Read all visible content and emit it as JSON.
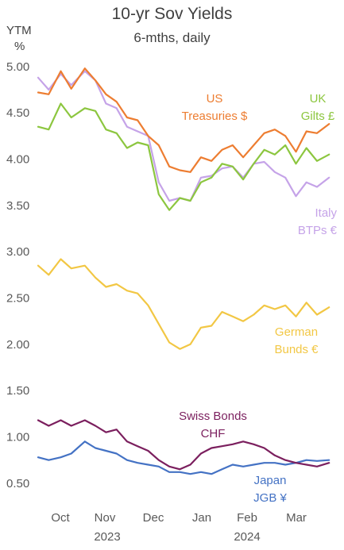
{
  "title": "10-yr Sov Yields",
  "subtitle": "6-mths, daily",
  "ylabel_line1": "YTM",
  "ylabel_line2": "%",
  "chart_data": {
    "type": "line",
    "title": "10-yr Sov Yields",
    "subtitle": "6-mths, daily",
    "ylabel": "YTM %",
    "ylim": [
      0.25,
      5.05
    ],
    "yticks": [
      "5.00",
      "4.50",
      "4.00",
      "3.50",
      "3.00",
      "2.50",
      "2.00",
      "1.50",
      "1.00",
      "0.50"
    ],
    "xlim": [
      "2023-09-18",
      "2024-03-31"
    ],
    "xticks": [
      {
        "month": "Oct",
        "year": "2023"
      },
      {
        "month": "Nov",
        "year": ""
      },
      {
        "month": "Dec",
        "year": ""
      },
      {
        "month": "Jan",
        "year": ""
      },
      {
        "month": "Feb",
        "year": "2024"
      },
      {
        "month": "Mar",
        "year": ""
      }
    ],
    "grid": false,
    "legend": "inline labels",
    "series": [
      {
        "name": "US Treasuries $",
        "label_lines": [
          "US",
          "Treasuries $"
        ],
        "color": "#ED7D31",
        "x": [
          "2023-09-18",
          "2023-09-25",
          "2023-10-03",
          "2023-10-10",
          "2023-10-19",
          "2023-10-26",
          "2023-11-02",
          "2023-11-09",
          "2023-11-16",
          "2023-11-23",
          "2023-11-30",
          "2023-12-07",
          "2023-12-14",
          "2023-12-21",
          "2023-12-28",
          "2024-01-04",
          "2024-01-11",
          "2024-01-18",
          "2024-01-25",
          "2024-02-01",
          "2024-02-08",
          "2024-02-15",
          "2024-02-22",
          "2024-02-29",
          "2024-03-07",
          "2024-03-14",
          "2024-03-21",
          "2024-03-29"
        ],
        "y": [
          4.72,
          4.7,
          4.95,
          4.76,
          4.98,
          4.85,
          4.7,
          4.62,
          4.45,
          4.42,
          4.25,
          4.15,
          3.92,
          3.88,
          3.86,
          4.02,
          3.98,
          4.1,
          4.15,
          4.02,
          4.15,
          4.28,
          4.32,
          4.25,
          4.08,
          4.3,
          4.28,
          4.38
        ]
      },
      {
        "name": "UK Gilts £",
        "label_lines": [
          "UK",
          "Gilts £"
        ],
        "color": "#8CC63F",
        "x": [
          "2023-09-18",
          "2023-09-25",
          "2023-10-03",
          "2023-10-10",
          "2023-10-19",
          "2023-10-26",
          "2023-11-02",
          "2023-11-09",
          "2023-11-16",
          "2023-11-23",
          "2023-11-30",
          "2023-12-07",
          "2023-12-14",
          "2023-12-21",
          "2023-12-28",
          "2024-01-04",
          "2024-01-11",
          "2024-01-18",
          "2024-01-25",
          "2024-02-01",
          "2024-02-08",
          "2024-02-15",
          "2024-02-22",
          "2024-02-29",
          "2024-03-07",
          "2024-03-14",
          "2024-03-21",
          "2024-03-29"
        ],
        "y": [
          4.35,
          4.32,
          4.6,
          4.45,
          4.55,
          4.52,
          4.32,
          4.28,
          4.12,
          4.18,
          4.15,
          3.62,
          3.45,
          3.58,
          3.55,
          3.75,
          3.8,
          3.95,
          3.92,
          3.78,
          3.95,
          4.1,
          4.05,
          4.15,
          3.95,
          4.12,
          3.98,
          4.05
        ]
      },
      {
        "name": "Italy BTPs €",
        "label_lines": [
          "Italy",
          "BTPs €"
        ],
        "color": "#C5A3E8",
        "x": [
          "2023-09-18",
          "2023-09-25",
          "2023-10-03",
          "2023-10-10",
          "2023-10-19",
          "2023-10-26",
          "2023-11-02",
          "2023-11-09",
          "2023-11-16",
          "2023-11-23",
          "2023-11-30",
          "2023-12-07",
          "2023-12-14",
          "2023-12-21",
          "2023-12-28",
          "2024-01-04",
          "2024-01-11",
          "2024-01-18",
          "2024-01-25",
          "2024-02-01",
          "2024-02-08",
          "2024-02-15",
          "2024-02-22",
          "2024-02-29",
          "2024-03-07",
          "2024-03-14",
          "2024-03-21",
          "2024-03-29"
        ],
        "y": [
          4.88,
          4.75,
          4.92,
          4.8,
          4.95,
          4.85,
          4.6,
          4.55,
          4.35,
          4.3,
          4.25,
          3.75,
          3.55,
          3.58,
          3.55,
          3.8,
          3.82,
          3.9,
          3.92,
          3.8,
          3.95,
          3.97,
          3.86,
          3.8,
          3.6,
          3.75,
          3.7,
          3.8
        ]
      },
      {
        "name": "German Bunds €",
        "label_lines": [
          "German",
          "Bunds €"
        ],
        "color": "#F2C744",
        "x": [
          "2023-09-18",
          "2023-09-25",
          "2023-10-03",
          "2023-10-10",
          "2023-10-19",
          "2023-10-26",
          "2023-11-02",
          "2023-11-09",
          "2023-11-16",
          "2023-11-23",
          "2023-11-30",
          "2023-12-07",
          "2023-12-14",
          "2023-12-21",
          "2023-12-28",
          "2024-01-04",
          "2024-01-11",
          "2024-01-18",
          "2024-01-25",
          "2024-02-01",
          "2024-02-08",
          "2024-02-15",
          "2024-02-22",
          "2024-02-29",
          "2024-03-07",
          "2024-03-14",
          "2024-03-21",
          "2024-03-29"
        ],
        "y": [
          2.85,
          2.75,
          2.92,
          2.82,
          2.85,
          2.72,
          2.62,
          2.65,
          2.58,
          2.55,
          2.42,
          2.22,
          2.02,
          1.95,
          2.0,
          2.18,
          2.2,
          2.35,
          2.3,
          2.25,
          2.32,
          2.42,
          2.38,
          2.42,
          2.3,
          2.45,
          2.32,
          2.4
        ]
      },
      {
        "name": "Swiss Bonds CHF",
        "label_lines": [
          "Swiss Bonds",
          "CHF"
        ],
        "color": "#7B1F5E",
        "x": [
          "2023-09-18",
          "2023-09-25",
          "2023-10-03",
          "2023-10-10",
          "2023-10-19",
          "2023-10-26",
          "2023-11-02",
          "2023-11-09",
          "2023-11-16",
          "2023-11-23",
          "2023-11-30",
          "2023-12-07",
          "2023-12-14",
          "2023-12-21",
          "2023-12-28",
          "2024-01-04",
          "2024-01-11",
          "2024-01-18",
          "2024-01-25",
          "2024-02-01",
          "2024-02-08",
          "2024-02-15",
          "2024-02-22",
          "2024-02-29",
          "2024-03-07",
          "2024-03-14",
          "2024-03-21",
          "2024-03-29"
        ],
        "y": [
          1.18,
          1.12,
          1.18,
          1.12,
          1.18,
          1.12,
          1.05,
          1.08,
          0.95,
          0.9,
          0.85,
          0.75,
          0.68,
          0.65,
          0.7,
          0.82,
          0.88,
          0.9,
          0.92,
          0.95,
          0.92,
          0.88,
          0.8,
          0.75,
          0.72,
          0.7,
          0.68,
          0.72
        ]
      },
      {
        "name": "Japan JGB ¥",
        "label_lines": [
          "Japan",
          "JGB ¥"
        ],
        "color": "#4472C4",
        "x": [
          "2023-09-18",
          "2023-09-25",
          "2023-10-03",
          "2023-10-10",
          "2023-10-19",
          "2023-10-26",
          "2023-11-02",
          "2023-11-09",
          "2023-11-16",
          "2023-11-23",
          "2023-11-30",
          "2023-12-07",
          "2023-12-14",
          "2023-12-21",
          "2023-12-28",
          "2024-01-04",
          "2024-01-11",
          "2024-01-18",
          "2024-01-25",
          "2024-02-01",
          "2024-02-08",
          "2024-02-15",
          "2024-02-22",
          "2024-02-29",
          "2024-03-07",
          "2024-03-14",
          "2024-03-21",
          "2024-03-29"
        ],
        "y": [
          0.78,
          0.75,
          0.78,
          0.82,
          0.95,
          0.88,
          0.85,
          0.82,
          0.75,
          0.72,
          0.7,
          0.68,
          0.62,
          0.62,
          0.6,
          0.62,
          0.6,
          0.65,
          0.7,
          0.68,
          0.7,
          0.72,
          0.72,
          0.7,
          0.72,
          0.75,
          0.74,
          0.75
        ]
      }
    ]
  }
}
